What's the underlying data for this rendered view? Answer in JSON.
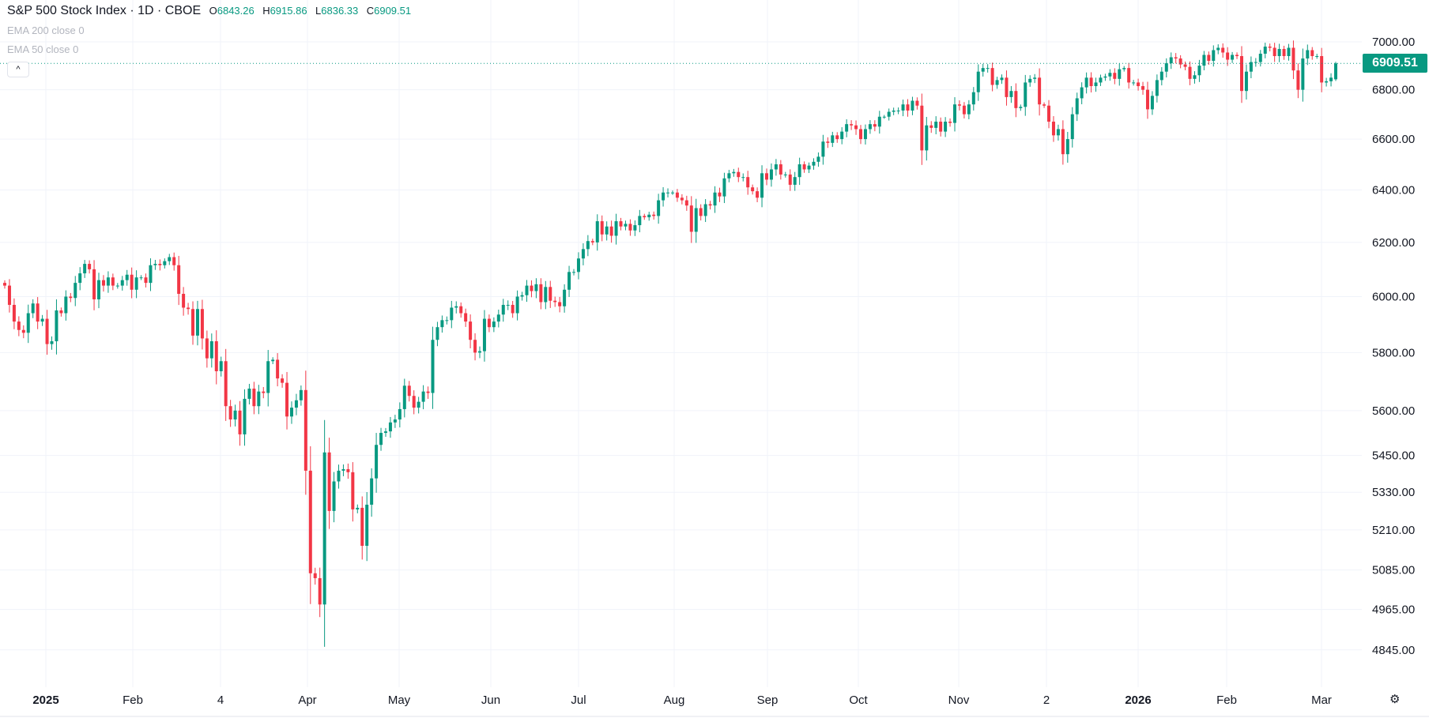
{
  "header": {
    "title": "S&P 500 Stock Index · 1D · CBOE",
    "open_label": "O",
    "open": "6843.26",
    "high_label": "H",
    "high": "6915.86",
    "low_label": "L",
    "low": "6836.33",
    "close_label": "C",
    "close": "6909.51",
    "indicators": [
      "EMA 200 close 0",
      "EMA 50 close 0"
    ],
    "collapse_icon": "chevron-up-icon"
  },
  "colors": {
    "up": "#089981",
    "down": "#F23645",
    "grid": "#f0f3fa"
  },
  "settings_icon": "gear-icon",
  "chart_data": {
    "type": "candlestick",
    "title": "S&P 500 Stock Index · 1D · CBOE",
    "y_scale": "log",
    "ylim": [
      4780,
      7080
    ],
    "grid": true,
    "y_ticks": [
      "7000.00",
      "6800.00",
      "6600.00",
      "6400.00",
      "6200.00",
      "6000.00",
      "5800.00",
      "5600.00",
      "5450.00",
      "5330.00",
      "5210.00",
      "5085.00",
      "4965.00",
      "4845.00"
    ],
    "x_ticks": [
      "2025",
      "Feb",
      "4",
      "Apr",
      "May",
      "Jun",
      "Jul",
      "Aug",
      "Sep",
      "Oct",
      "Nov",
      "2",
      "2026",
      "Feb",
      "Mar"
    ],
    "last_price": "6909.51",
    "first_open": 6050,
    "last_candle": {
      "open": 6843.26,
      "high": 6915.86,
      "low": 6836.33,
      "close": 6909.51
    },
    "closes": [
      6040,
      5970,
      5910,
      5880,
      5870,
      5940,
      5975,
      5910,
      5920,
      5830,
      5840,
      5950,
      5940,
      6000,
      5995,
      6050,
      6085,
      6120,
      6100,
      5990,
      6060,
      6040,
      6070,
      6040,
      6040,
      6060,
      6080,
      6025,
      6070,
      6070,
      6050,
      6115,
      6120,
      6115,
      6130,
      6145,
      6115,
      6010,
      5960,
      5955,
      5860,
      5955,
      5850,
      5780,
      5840,
      5735,
      5770,
      5615,
      5570,
      5600,
      5520,
      5640,
      5675,
      5615,
      5665,
      5660,
      5770,
      5775,
      5710,
      5695,
      5580,
      5610,
      5635,
      5670,
      5400,
      5075,
      5060,
      4980,
      5460,
      5270,
      5365,
      5400,
      5405,
      5395,
      5275,
      5280,
      5160,
      5290,
      5375,
      5485,
      5525,
      5530,
      5560,
      5570,
      5605,
      5685,
      5650,
      5610,
      5630,
      5665,
      5660,
      5845,
      5890,
      5915,
      5915,
      5960,
      5965,
      5940,
      5910,
      5845,
      5800,
      5805,
      5920,
      5890,
      5910,
      5935,
      5970,
      5970,
      5940,
      6000,
      6005,
      6040,
      6020,
      6045,
      5980,
      6035,
      5985,
      5980,
      5965,
      6025,
      6090,
      6090,
      6140,
      6175,
      6205,
      6200,
      6280,
      6230,
      6260,
      6225,
      6280,
      6260,
      6270,
      6245,
      6265,
      6300,
      6295,
      6305,
      6300,
      6360,
      6390,
      6390,
      6390,
      6370,
      6360,
      6340,
      6240,
      6330,
      6300,
      6345,
      6340,
      6390,
      6375,
      6445,
      6465,
      6470,
      6450,
      6450,
      6410,
      6395,
      6370,
      6465,
      6440,
      6480,
      6500,
      6460,
      6460,
      6420,
      6450,
      6500,
      6480,
      6495,
      6510,
      6530,
      6590,
      6585,
      6615,
      6600,
      6630,
      6660,
      6655,
      6640,
      6600,
      6640,
      6660,
      6650,
      6690,
      6690,
      6710,
      6715,
      6715,
      6740,
      6715,
      6755,
      6735,
      6555,
      6655,
      6645,
      6670,
      6630,
      6670,
      6665,
      6740,
      6735,
      6700,
      6740,
      6790,
      6875,
      6890,
      6890,
      6820,
      6840,
      6850,
      6770,
      6795,
      6725,
      6730,
      6830,
      6845,
      6850,
      6740,
      6735,
      6670,
      6615,
      6640,
      6540,
      6600,
      6700,
      6765,
      6810,
      6850,
      6815,
      6830,
      6850,
      6855,
      6870,
      6845,
      6885,
      6890,
      6830,
      6830,
      6815,
      6800,
      6720,
      6775,
      6840,
      6875,
      6910,
      6935,
      6930,
      6905,
      6895,
      6845,
      6860,
      6900,
      6945,
      6920,
      6965,
      6975,
      6955,
      6925,
      6945,
      6940,
      6795,
      6875,
      6915,
      6915,
      6950,
      6980,
      6975,
      6940,
      6970,
      6940,
      6975,
      6880,
      6800,
      6930,
      6965,
      6940,
      6940,
      6830,
      6835,
      6850,
      6843.26
    ]
  }
}
